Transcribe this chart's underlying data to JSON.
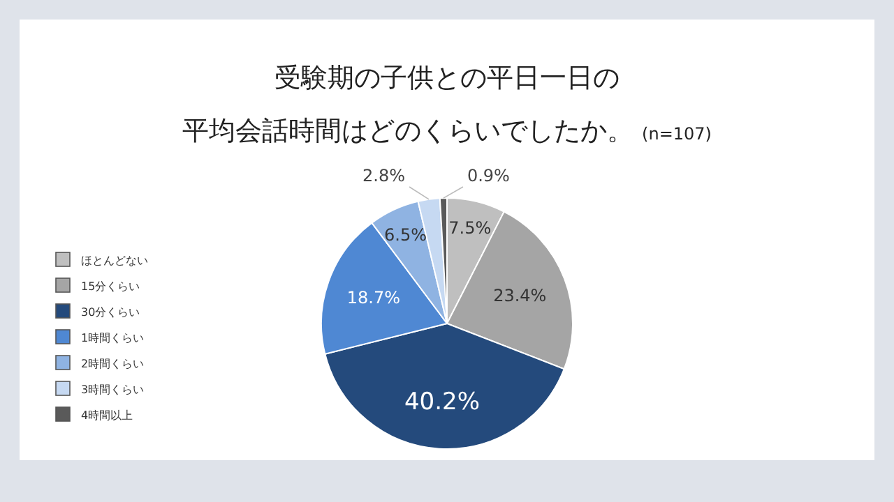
{
  "chart_data": {
    "type": "pie",
    "title": "受験期の子供との平日一日の",
    "subtitle": "平均会話時間はどのくらいでしたか。",
    "annotations": [
      "(n=107)"
    ],
    "categories": [
      "ほとんどない",
      "15分くらい",
      "30分くらい",
      "1時間くらい",
      "2時間くらい",
      "3時間くらい",
      "4時間以上"
    ],
    "values": [
      7.5,
      23.4,
      40.2,
      18.7,
      6.5,
      2.8,
      0.9
    ],
    "value_labels": [
      "7.5%",
      "23.4%",
      "40.2%",
      "18.7%",
      "6.5%",
      "2.8%",
      "0.9%"
    ],
    "colors": [
      "#bfbfbf",
      "#a5a5a5",
      "#244a7c",
      "#4f88d3",
      "#8fb3e2",
      "#c6d9f2",
      "#5a5a5a"
    ],
    "legend": "left"
  }
}
